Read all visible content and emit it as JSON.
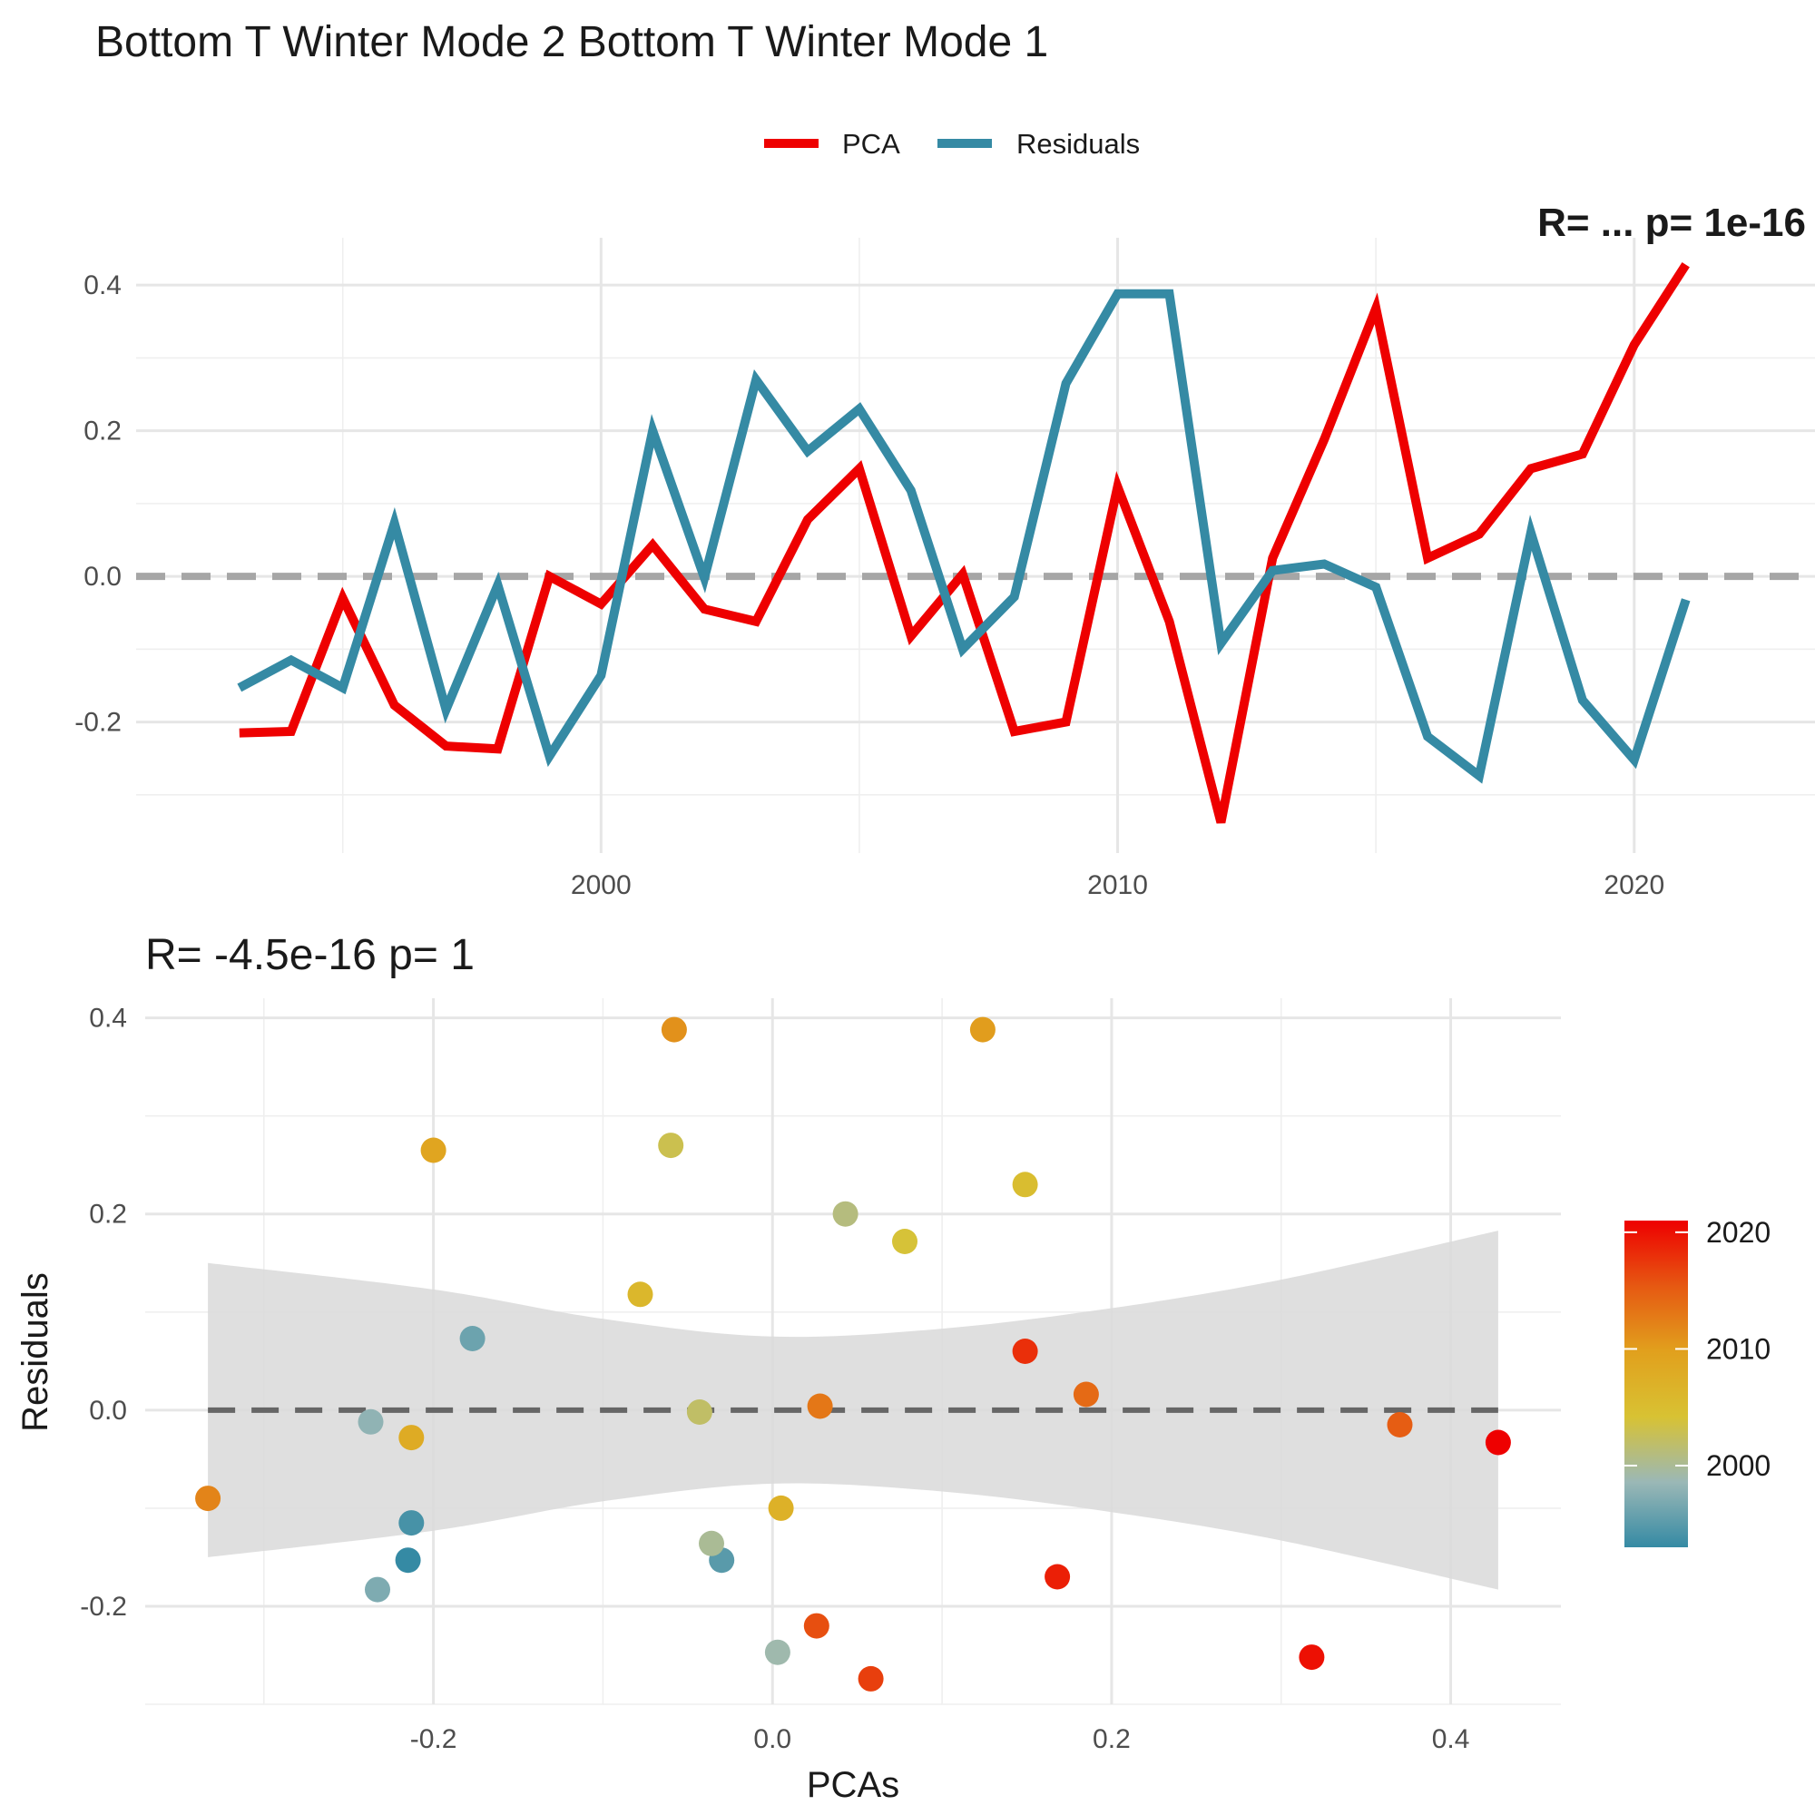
{
  "page_title": "Bottom T Winter Mode 2 Bottom T Winter Mode 1",
  "corner_label": "R=  ...  p= 1e-16",
  "colors": {
    "pca": "#ee0000",
    "residuals": "#358aa4",
    "zero_line_top": "#a6a6a6",
    "zero_line_bottom": "#666666",
    "ribbon": "#d9d9d9",
    "year_gradient": [
      "#358aa4",
      "#9bb8b6",
      "#d8c233",
      "#e1a01d",
      "#e65812",
      "#ee0000"
    ]
  },
  "chart_data": [
    {
      "type": "line",
      "title": "",
      "legend": {
        "placement": "top",
        "entries": [
          "PCA",
          "Residuals"
        ]
      },
      "x_ticks": [
        2000,
        2010,
        2020
      ],
      "y_ticks": [
        -0.2,
        0.0,
        0.2,
        0.4
      ],
      "x_tick_labels": [
        "2000",
        "2010",
        "2020"
      ],
      "y_tick_labels": [
        "-0.2",
        "0.0",
        "0.2",
        "0.4"
      ],
      "xlim": [
        1991.0,
        2023.5
      ],
      "ylim": [
        -0.38,
        0.465
      ],
      "grid": true,
      "reference_line": {
        "y": 0,
        "style": "dashed"
      },
      "x": [
        1993,
        1994,
        1995,
        1996,
        1997,
        1998,
        1999,
        2000,
        2001,
        2002,
        2003,
        2004,
        2005,
        2006,
        2007,
        2008,
        2009,
        2010,
        2011,
        2012,
        2013,
        2014,
        2015,
        2016,
        2017,
        2018,
        2019,
        2020,
        2021
      ],
      "series": [
        {
          "name": "PCA",
          "values": [
            -0.215,
            -0.213,
            -0.03,
            -0.177,
            -0.233,
            -0.237,
            0.0,
            -0.038,
            0.043,
            -0.045,
            -0.062,
            0.078,
            0.148,
            -0.082,
            0.003,
            -0.213,
            -0.2,
            0.123,
            -0.062,
            -0.338,
            0.025,
            0.188,
            0.368,
            0.025,
            0.058,
            0.148,
            0.168,
            0.318,
            0.428
          ]
        },
        {
          "name": "Residuals",
          "values": [
            -0.153,
            -0.115,
            -0.153,
            0.073,
            -0.183,
            -0.012,
            -0.247,
            -0.136,
            0.2,
            -0.002,
            0.27,
            0.172,
            0.23,
            0.118,
            -0.1,
            -0.028,
            0.265,
            0.388,
            0.388,
            -0.092,
            0.008,
            0.017,
            -0.015,
            -0.22,
            -0.274,
            0.06,
            -0.17,
            -0.252,
            -0.032
          ]
        }
      ]
    },
    {
      "type": "scatter",
      "title": "R= -4.5e-16  p= 1",
      "xlabel": "PCAs",
      "ylabel": "Residuals",
      "x_ticks": [
        -0.2,
        0.0,
        0.2,
        0.4
      ],
      "y_ticks": [
        -0.2,
        0.0,
        0.2,
        0.4
      ],
      "x_tick_labels": [
        "-0.2",
        "0.0",
        "0.2",
        "0.4"
      ],
      "y_tick_labels": [
        "-0.2",
        "0.0",
        "0.2",
        "0.4"
      ],
      "xlim": [
        -0.37,
        0.465
      ],
      "ylim": [
        -0.3,
        0.42
      ],
      "grid": true,
      "reference_line": {
        "y": 0,
        "style": "dashed"
      },
      "confidence_band": {
        "x": [
          -0.333,
          -0.2,
          -0.1,
          0.0,
          0.1,
          0.2,
          0.3,
          0.428
        ],
        "upper": [
          0.15,
          0.123,
          0.093,
          0.075,
          0.083,
          0.104,
          0.133,
          0.183
        ],
        "lower": [
          -0.15,
          -0.123,
          -0.093,
          -0.075,
          -0.083,
          -0.104,
          -0.133,
          -0.183
        ]
      },
      "color_scale": {
        "title": "",
        "ticks": [
          2000,
          2010,
          2020
        ],
        "tick_labels": [
          "2000",
          "2010",
          "2020"
        ],
        "range": [
          1993,
          2021
        ],
        "placement": "right"
      },
      "points": [
        {
          "x": -0.215,
          "y": -0.153,
          "year": 1993
        },
        {
          "x": -0.213,
          "y": -0.115,
          "year": 1994
        },
        {
          "x": -0.03,
          "y": -0.153,
          "year": 1995
        },
        {
          "x": -0.177,
          "y": 0.073,
          "year": 1996
        },
        {
          "x": -0.233,
          "y": -0.183,
          "year": 1997
        },
        {
          "x": -0.237,
          "y": -0.012,
          "year": 1998
        },
        {
          "x": 0.003,
          "y": -0.247,
          "year": 1999
        },
        {
          "x": -0.036,
          "y": -0.136,
          "year": 2000
        },
        {
          "x": 0.043,
          "y": 0.2,
          "year": 2001
        },
        {
          "x": -0.043,
          "y": -0.002,
          "year": 2002
        },
        {
          "x": -0.06,
          "y": 0.27,
          "year": 2003
        },
        {
          "x": 0.078,
          "y": 0.172,
          "year": 2004
        },
        {
          "x": 0.149,
          "y": 0.23,
          "year": 2005
        },
        {
          "x": -0.078,
          "y": 0.118,
          "year": 2006
        },
        {
          "x": 0.005,
          "y": -0.1,
          "year": 2007
        },
        {
          "x": -0.213,
          "y": -0.028,
          "year": 2008
        },
        {
          "x": -0.2,
          "y": 0.265,
          "year": 2009
        },
        {
          "x": 0.124,
          "y": 0.388,
          "year": 2010
        },
        {
          "x": -0.058,
          "y": 0.388,
          "year": 2011
        },
        {
          "x": -0.333,
          "y": -0.09,
          "year": 2012
        },
        {
          "x": 0.028,
          "y": 0.004,
          "year": 2013
        },
        {
          "x": 0.185,
          "y": 0.016,
          "year": 2014
        },
        {
          "x": 0.37,
          "y": -0.015,
          "year": 2015
        },
        {
          "x": 0.026,
          "y": -0.22,
          "year": 2016
        },
        {
          "x": 0.058,
          "y": -0.274,
          "year": 2017
        },
        {
          "x": 0.149,
          "y": 0.06,
          "year": 2018
        },
        {
          "x": 0.168,
          "y": -0.17,
          "year": 2019
        },
        {
          "x": 0.318,
          "y": -0.252,
          "year": 2020
        },
        {
          "x": 0.428,
          "y": -0.033,
          "year": 2021
        }
      ]
    }
  ]
}
